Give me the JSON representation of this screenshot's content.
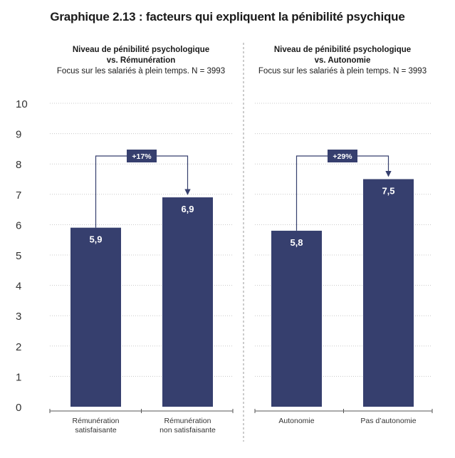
{
  "title": "Graphique 2.13 : facteurs qui expliquent la pénibilité psychique",
  "panels": [
    {
      "title_line1": "Niveau de pénibilité psychologique",
      "title_line2": "vs. Rémunération",
      "subtitle": "Focus sur les salariés à plein temps. N = 3993"
    },
    {
      "title_line1": "Niveau de pénibilité psychologique",
      "title_line2": "vs. Autonomie",
      "subtitle": "Focus sur les salariés à plein temps. N = 3993"
    }
  ],
  "colors": {
    "bar": "#363f6e",
    "grid": "#c8c8c8",
    "axis": "#555555",
    "divider": "#9a9a9a"
  },
  "chart_data": [
    {
      "type": "bar",
      "title": "Niveau de pénibilité psychologique vs. Rémunération",
      "subtitle": "Focus sur les salariés à plein temps. N = 3993",
      "categories": [
        [
          "Rémunération",
          "satisfaisante"
        ],
        [
          "Rémunération",
          "non satisfaisante"
        ]
      ],
      "values": [
        5.9,
        6.9
      ],
      "value_labels": [
        "5,9",
        "6,9"
      ],
      "annotation": "+17%",
      "ylim": [
        0,
        10
      ],
      "yticks": [
        0,
        1,
        2,
        3,
        4,
        5,
        6,
        7,
        8,
        9,
        10
      ],
      "grid": true
    },
    {
      "type": "bar",
      "title": "Niveau de pénibilité psychologique vs. Autonomie",
      "subtitle": "Focus sur les salariés à plein temps. N = 3993",
      "categories": [
        [
          "Autonomie"
        ],
        [
          "Pas d’autonomie"
        ]
      ],
      "values": [
        5.8,
        7.5
      ],
      "value_labels": [
        "5,8",
        "7,5"
      ],
      "annotation": "+29%",
      "ylim": [
        0,
        10
      ],
      "yticks": [
        0,
        1,
        2,
        3,
        4,
        5,
        6,
        7,
        8,
        9,
        10
      ],
      "grid": true
    }
  ]
}
